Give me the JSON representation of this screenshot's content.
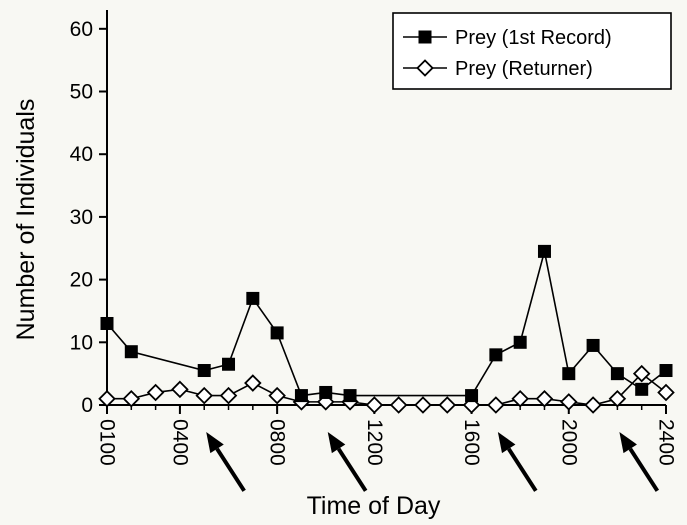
{
  "chart_data": {
    "type": "line",
    "xlabel": "Time of Day",
    "ylabel": "Number of Individuals",
    "xlim": [
      1,
      24
    ],
    "ylim": [
      0,
      63
    ],
    "yticks": [
      0,
      10,
      20,
      30,
      40,
      50,
      60
    ],
    "xticks": [
      {
        "x": 1,
        "label": "0100"
      },
      {
        "x": 4,
        "label": "0400"
      },
      {
        "x": 8,
        "label": "0800"
      },
      {
        "x": 12,
        "label": "1200"
      },
      {
        "x": 16,
        "label": "1600"
      },
      {
        "x": 20,
        "label": "2000"
      },
      {
        "x": 24,
        "label": "2400"
      }
    ],
    "legend_position": "top-right",
    "series": [
      {
        "name": "Prey (1st Record)",
        "marker": "filled-square",
        "color": "#000000",
        "points": [
          [
            1,
            13
          ],
          [
            2,
            8.5
          ],
          [
            5,
            5.5
          ],
          [
            6,
            6.5
          ],
          [
            7,
            17
          ],
          [
            8,
            11.5
          ],
          [
            9,
            1.5
          ],
          [
            10,
            2
          ],
          [
            11,
            1.5
          ],
          [
            16,
            1.5
          ],
          [
            17,
            8
          ],
          [
            18,
            10
          ],
          [
            19,
            24.5
          ],
          [
            20,
            5
          ],
          [
            21,
            9.5
          ],
          [
            22,
            5
          ],
          [
            23,
            2.5
          ],
          [
            24,
            5.5
          ]
        ]
      },
      {
        "name": "Prey (Returner)",
        "marker": "open-diamond",
        "color": "#000000",
        "points": [
          [
            1,
            1
          ],
          [
            2,
            1
          ],
          [
            3,
            2
          ],
          [
            4,
            2.5
          ],
          [
            5,
            1.5
          ],
          [
            6,
            1.5
          ],
          [
            7,
            3.5
          ],
          [
            8,
            1.5
          ],
          [
            9,
            0.5
          ],
          [
            10,
            0.5
          ],
          [
            11,
            0.5
          ],
          [
            12,
            0
          ],
          [
            13,
            0
          ],
          [
            14,
            0
          ],
          [
            15,
            0
          ],
          [
            16,
            0
          ],
          [
            17,
            0
          ],
          [
            18,
            1
          ],
          [
            19,
            1
          ],
          [
            20,
            0.5
          ],
          [
            21,
            0
          ],
          [
            22,
            1
          ],
          [
            23,
            5
          ],
          [
            24,
            2
          ]
        ]
      }
    ],
    "annotations": [
      {
        "type": "arrow",
        "points_to_x": 5
      },
      {
        "type": "arrow",
        "points_to_x": 10
      },
      {
        "type": "arrow",
        "points_to_x": 17
      },
      {
        "type": "arrow",
        "points_to_x": 22
      }
    ]
  }
}
